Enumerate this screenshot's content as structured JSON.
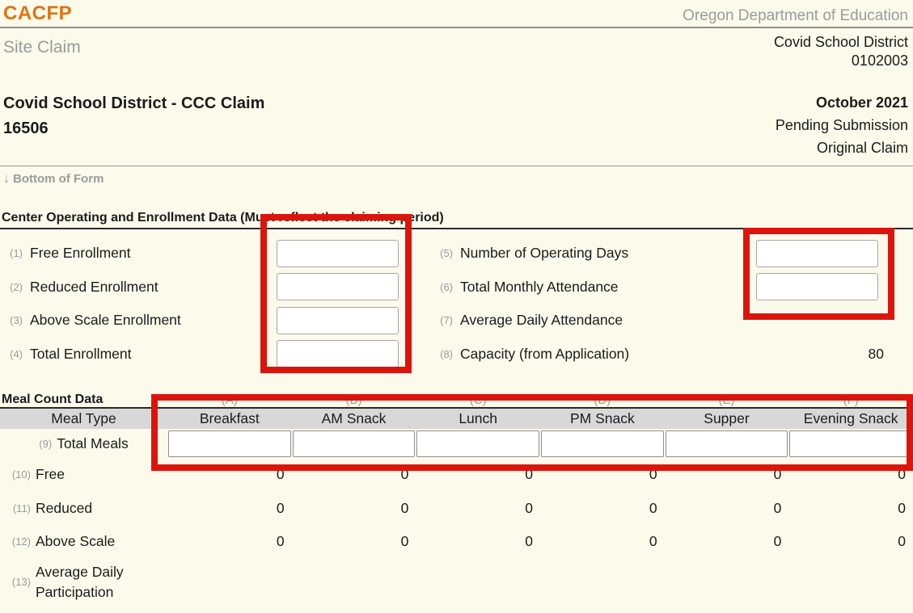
{
  "app": {
    "brand": "CACFP",
    "agency": "Oregon Department of Education",
    "page_title": "Site Claim",
    "district_name": "Covid School District",
    "district_code": "0102003"
  },
  "claim": {
    "title": "Covid School District - CCC Claim",
    "number": "16506",
    "month": "October 2021",
    "status": "Pending Submission",
    "type": "Original Claim"
  },
  "nav": {
    "arrow": "↓",
    "bottom_link": "Bottom of Form"
  },
  "enrollment_section": {
    "title": "Center Operating and Enrollment Data (Must reflect the claiming period)",
    "left_fields": [
      {
        "num": "(1)",
        "label": "Free Enrollment",
        "value": ""
      },
      {
        "num": "(2)",
        "label": "Reduced Enrollment",
        "value": ""
      },
      {
        "num": "(3)",
        "label": "Above Scale Enrollment",
        "value": ""
      },
      {
        "num": "(4)",
        "label": "Total Enrollment",
        "value": ""
      }
    ],
    "right_fields": [
      {
        "num": "(5)",
        "label": "Number of Operating Days",
        "value": ""
      },
      {
        "num": "(6)",
        "label": "Total Monthly Attendance",
        "value": ""
      },
      {
        "num": "(7)",
        "label": "Average Daily Attendance",
        "value": ""
      },
      {
        "num": "(8)",
        "label": "Capacity (from Application)",
        "value": "80"
      }
    ]
  },
  "meal_section": {
    "title": "Meal Count Data",
    "column_letters": [
      "(A)",
      "(B)",
      "(C)",
      "(D)",
      "(E)",
      "(F)"
    ],
    "meal_type_header": "Meal Type",
    "columns": [
      "Breakfast",
      "AM Snack",
      "Lunch",
      "PM Snack",
      "Supper",
      "Evening Snack"
    ],
    "rows": [
      {
        "num": "(9)",
        "label": "Total Meals",
        "values": [
          "",
          "",
          "",
          "",
          "",
          ""
        ]
      },
      {
        "num": "(10)",
        "label": "Free",
        "values": [
          "0",
          "0",
          "0",
          "0",
          "0",
          "0"
        ]
      },
      {
        "num": "(11)",
        "label": "Reduced",
        "values": [
          "0",
          "0",
          "0",
          "0",
          "0",
          "0"
        ]
      },
      {
        "num": "(12)",
        "label": "Above Scale",
        "values": [
          "0",
          "0",
          "0",
          "0",
          "0",
          "0"
        ]
      },
      {
        "num": "(13)",
        "label": "Average Daily Participation",
        "values": [
          "",
          "",
          "",
          "",
          "",
          ""
        ]
      }
    ]
  },
  "annotations": {
    "highlight_color": "#dc150c"
  }
}
